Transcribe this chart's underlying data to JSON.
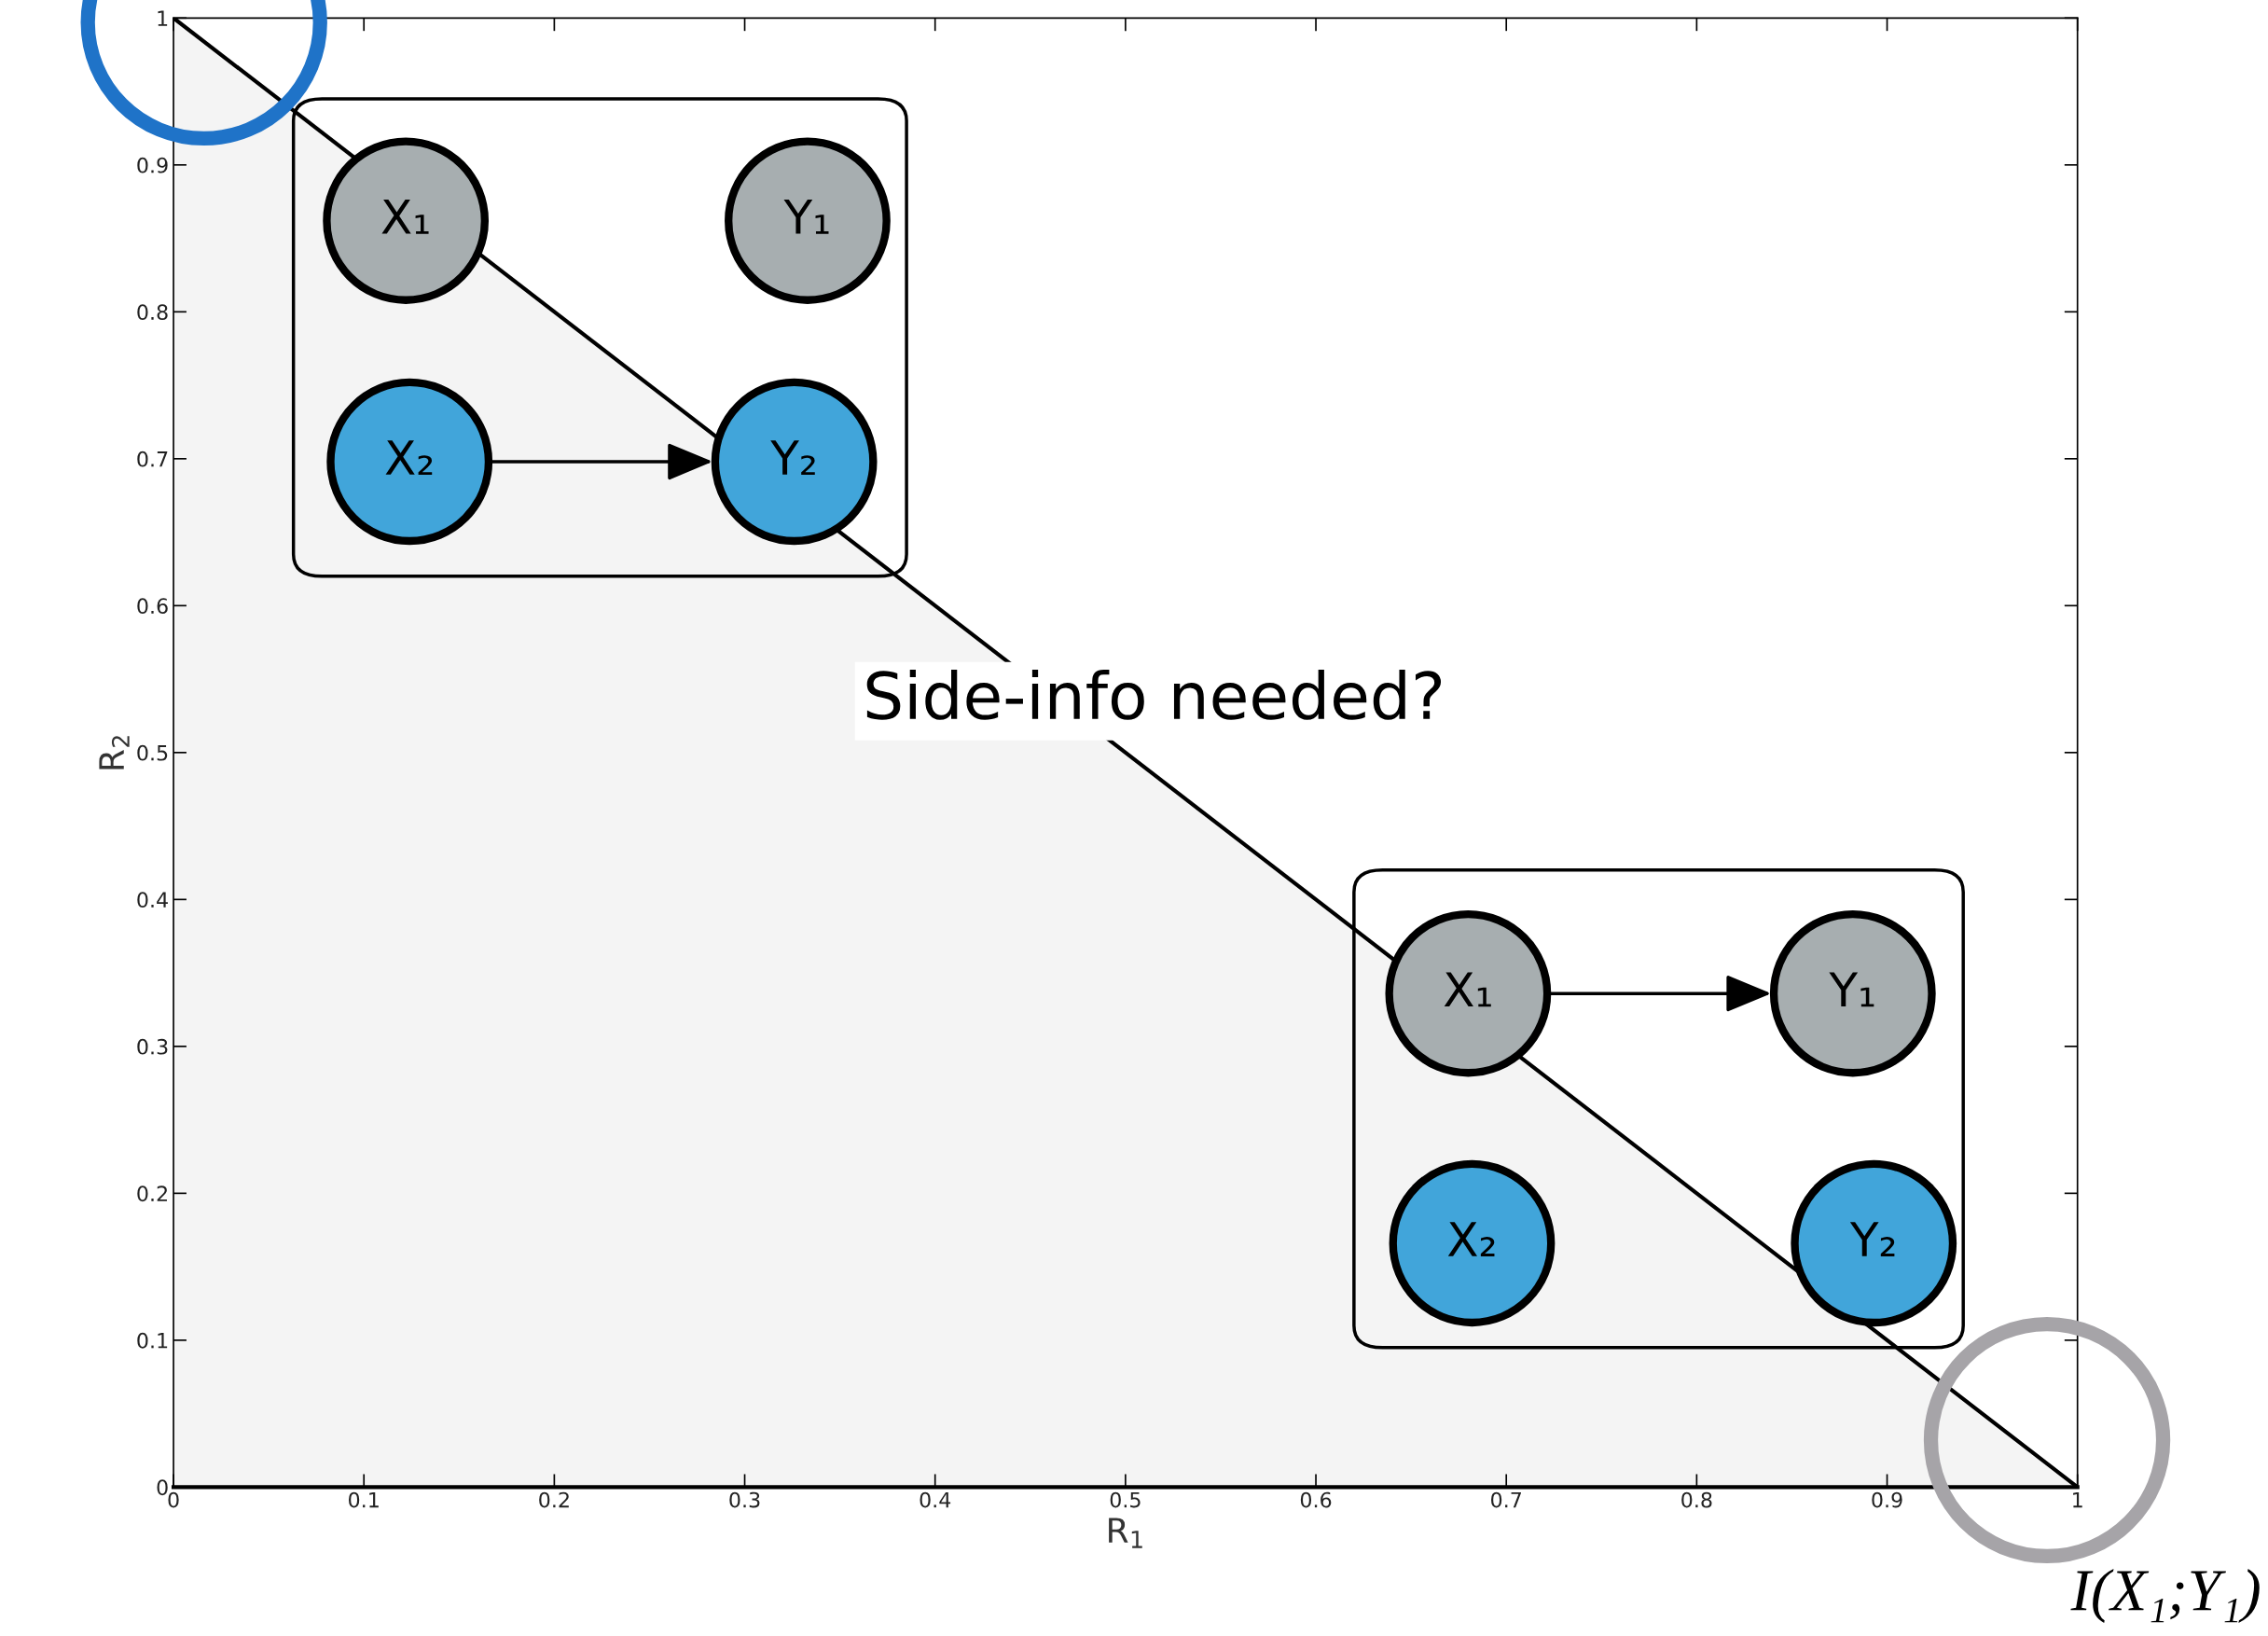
{
  "chart_data": {
    "type": "area",
    "x": [
      0,
      1
    ],
    "series": [
      {
        "color": "#000000",
        "values": [
          1,
          0
        ]
      }
    ],
    "xlim": [
      0,
      1
    ],
    "ylim": [
      0,
      1
    ],
    "xticks": [
      0,
      0.1,
      0.2,
      0.3,
      0.4,
      0.5,
      0.6,
      0.7,
      0.8,
      0.9,
      1
    ],
    "yticks": [
      0,
      0.1,
      0.2,
      0.3,
      0.4,
      0.5,
      0.6,
      0.7,
      0.8,
      0.9,
      1
    ],
    "xlabel": "R$_{1}$",
    "ylabel": "R$_{2}$",
    "grid": false,
    "annotations": [
      "Side-info needed?",
      "I(X₁;Y₁)",
      "X₁",
      "Y₁",
      "X₂",
      "Y₂",
      "X₁",
      "Y₁",
      "X₂",
      "Y₂"
    ]
  }
}
